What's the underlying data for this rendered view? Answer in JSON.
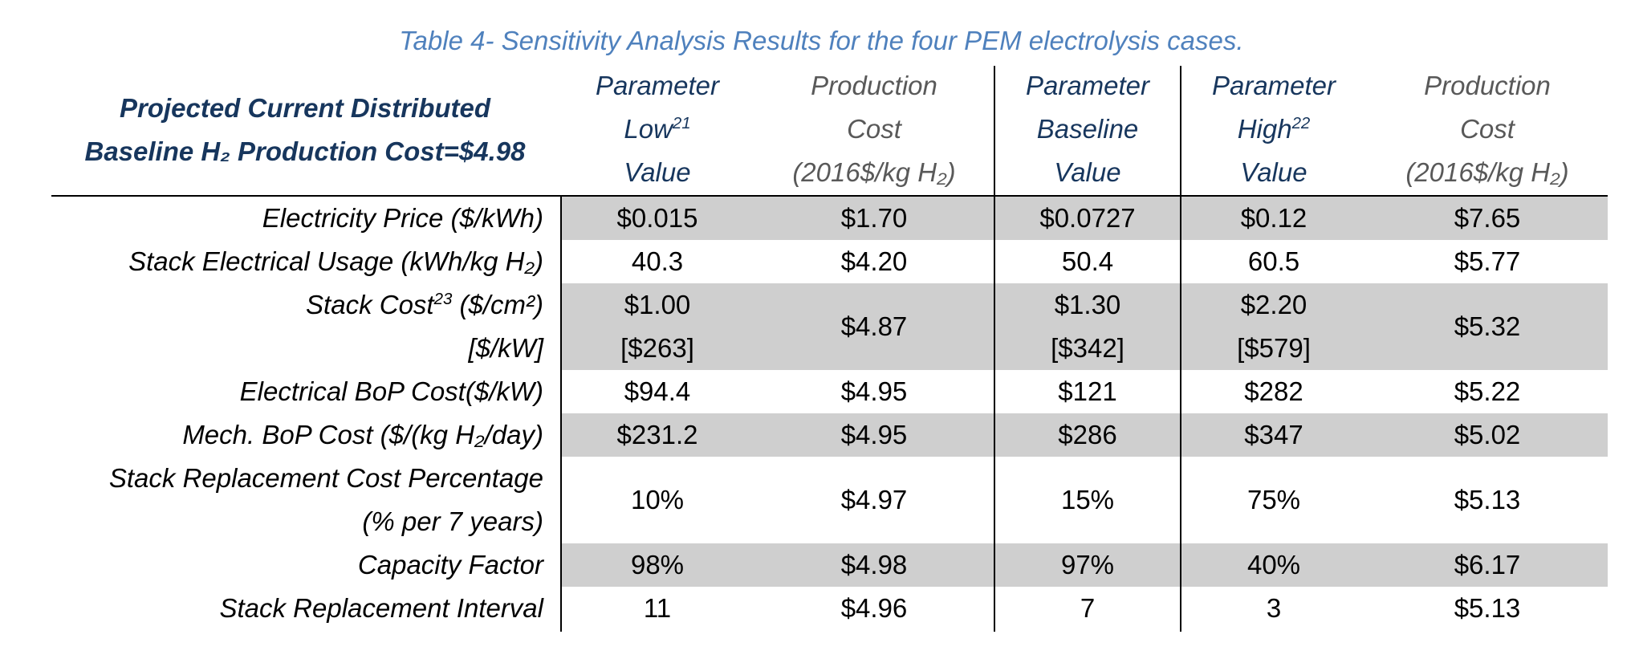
{
  "caption": "Table 4- Sensitivity Analysis Results for the four PEM electrolysis cases.",
  "header": {
    "title_line1": "Projected Current Distributed",
    "title_line2": "Baseline H₂ Production Cost=$4.98",
    "col_low": [
      "Parameter",
      "Low",
      "Value"
    ],
    "col_low_sup": "21",
    "col_cost_low": [
      "Production",
      "Cost",
      "(2016$/kg H₂)"
    ],
    "col_baseline": [
      "Parameter",
      "Baseline",
      "Value"
    ],
    "col_high": [
      "Parameter",
      "High",
      "Value"
    ],
    "col_high_sup": "22",
    "col_cost_high": [
      "Production",
      "Cost",
      "(2016$/kg H₂)"
    ]
  },
  "rows": [
    {
      "label": "Electricity Price ($/kWh)",
      "low": "$0.015",
      "cost_low": "$1.70",
      "baseline": "$0.0727",
      "high": "$0.12",
      "cost_high": "$7.65"
    },
    {
      "label": "Stack Electrical Usage (kWh/kg H₂)",
      "low": "40.3",
      "cost_low": "$4.20",
      "baseline": "50.4",
      "high": "60.5",
      "cost_high": "$5.77"
    },
    {
      "label_part1": "Stack Cost",
      "label_sup": "23",
      "label_part2": "($/cm²)",
      "label_line2": "[$/kW]",
      "low": "$1.00",
      "low_line2": "[$263]",
      "cost_low": "$4.87",
      "baseline": "$1.30",
      "baseline_line2": "[$342]",
      "high": "$2.20",
      "high_line2": "[$579]",
      "cost_high": "$5.32"
    },
    {
      "label": "Electrical BoP Cost($/kW)",
      "low": "$94.4",
      "cost_low": "$4.95",
      "baseline": "$121",
      "high": "$282",
      "cost_high": "$5.22"
    },
    {
      "label": "Mech. BoP Cost ($/(kg H₂/day)",
      "low": "$231.2",
      "cost_low": "$4.95",
      "baseline": "$286",
      "high": "$347",
      "cost_high": "$5.02"
    },
    {
      "label": "Stack Replacement Cost Percentage",
      "label_line2": "(% per 7 years)",
      "low": "10%",
      "cost_low": "$4.97",
      "baseline": "15%",
      "high": "75%",
      "cost_high": "$5.13"
    },
    {
      "label": "Capacity Factor",
      "low": "98%",
      "cost_low": "$4.98",
      "baseline": "97%",
      "high": "40%",
      "cost_high": "$6.17"
    },
    {
      "label": "Stack Replacement Interval",
      "low": "11",
      "cost_low": "$4.96",
      "baseline": "7",
      "high": "3",
      "cost_high": "$5.13"
    }
  ]
}
